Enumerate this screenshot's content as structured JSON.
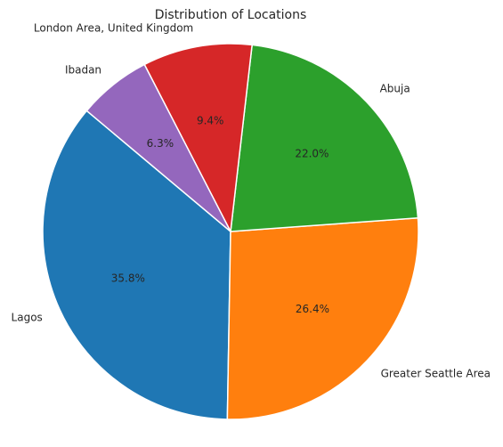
{
  "chart_data": {
    "type": "pie",
    "title": "Distribution of Locations",
    "categories": [
      "Lagos",
      "Greater Seattle Area",
      "Abuja",
      "London Area, United Kingdom",
      "Ibadan"
    ],
    "values": [
      35.8,
      26.4,
      22.0,
      9.4,
      6.3
    ],
    "value_labels": [
      "35.8%",
      "26.4%",
      "22.0%",
      "9.4%",
      "6.3%"
    ],
    "colors": [
      "#1f77b4",
      "#ff7f0e",
      "#2ca02c",
      "#d62728",
      "#9467bd"
    ],
    "start_angle_deg": 140,
    "direction": "counterclockwise",
    "legend": "none"
  }
}
